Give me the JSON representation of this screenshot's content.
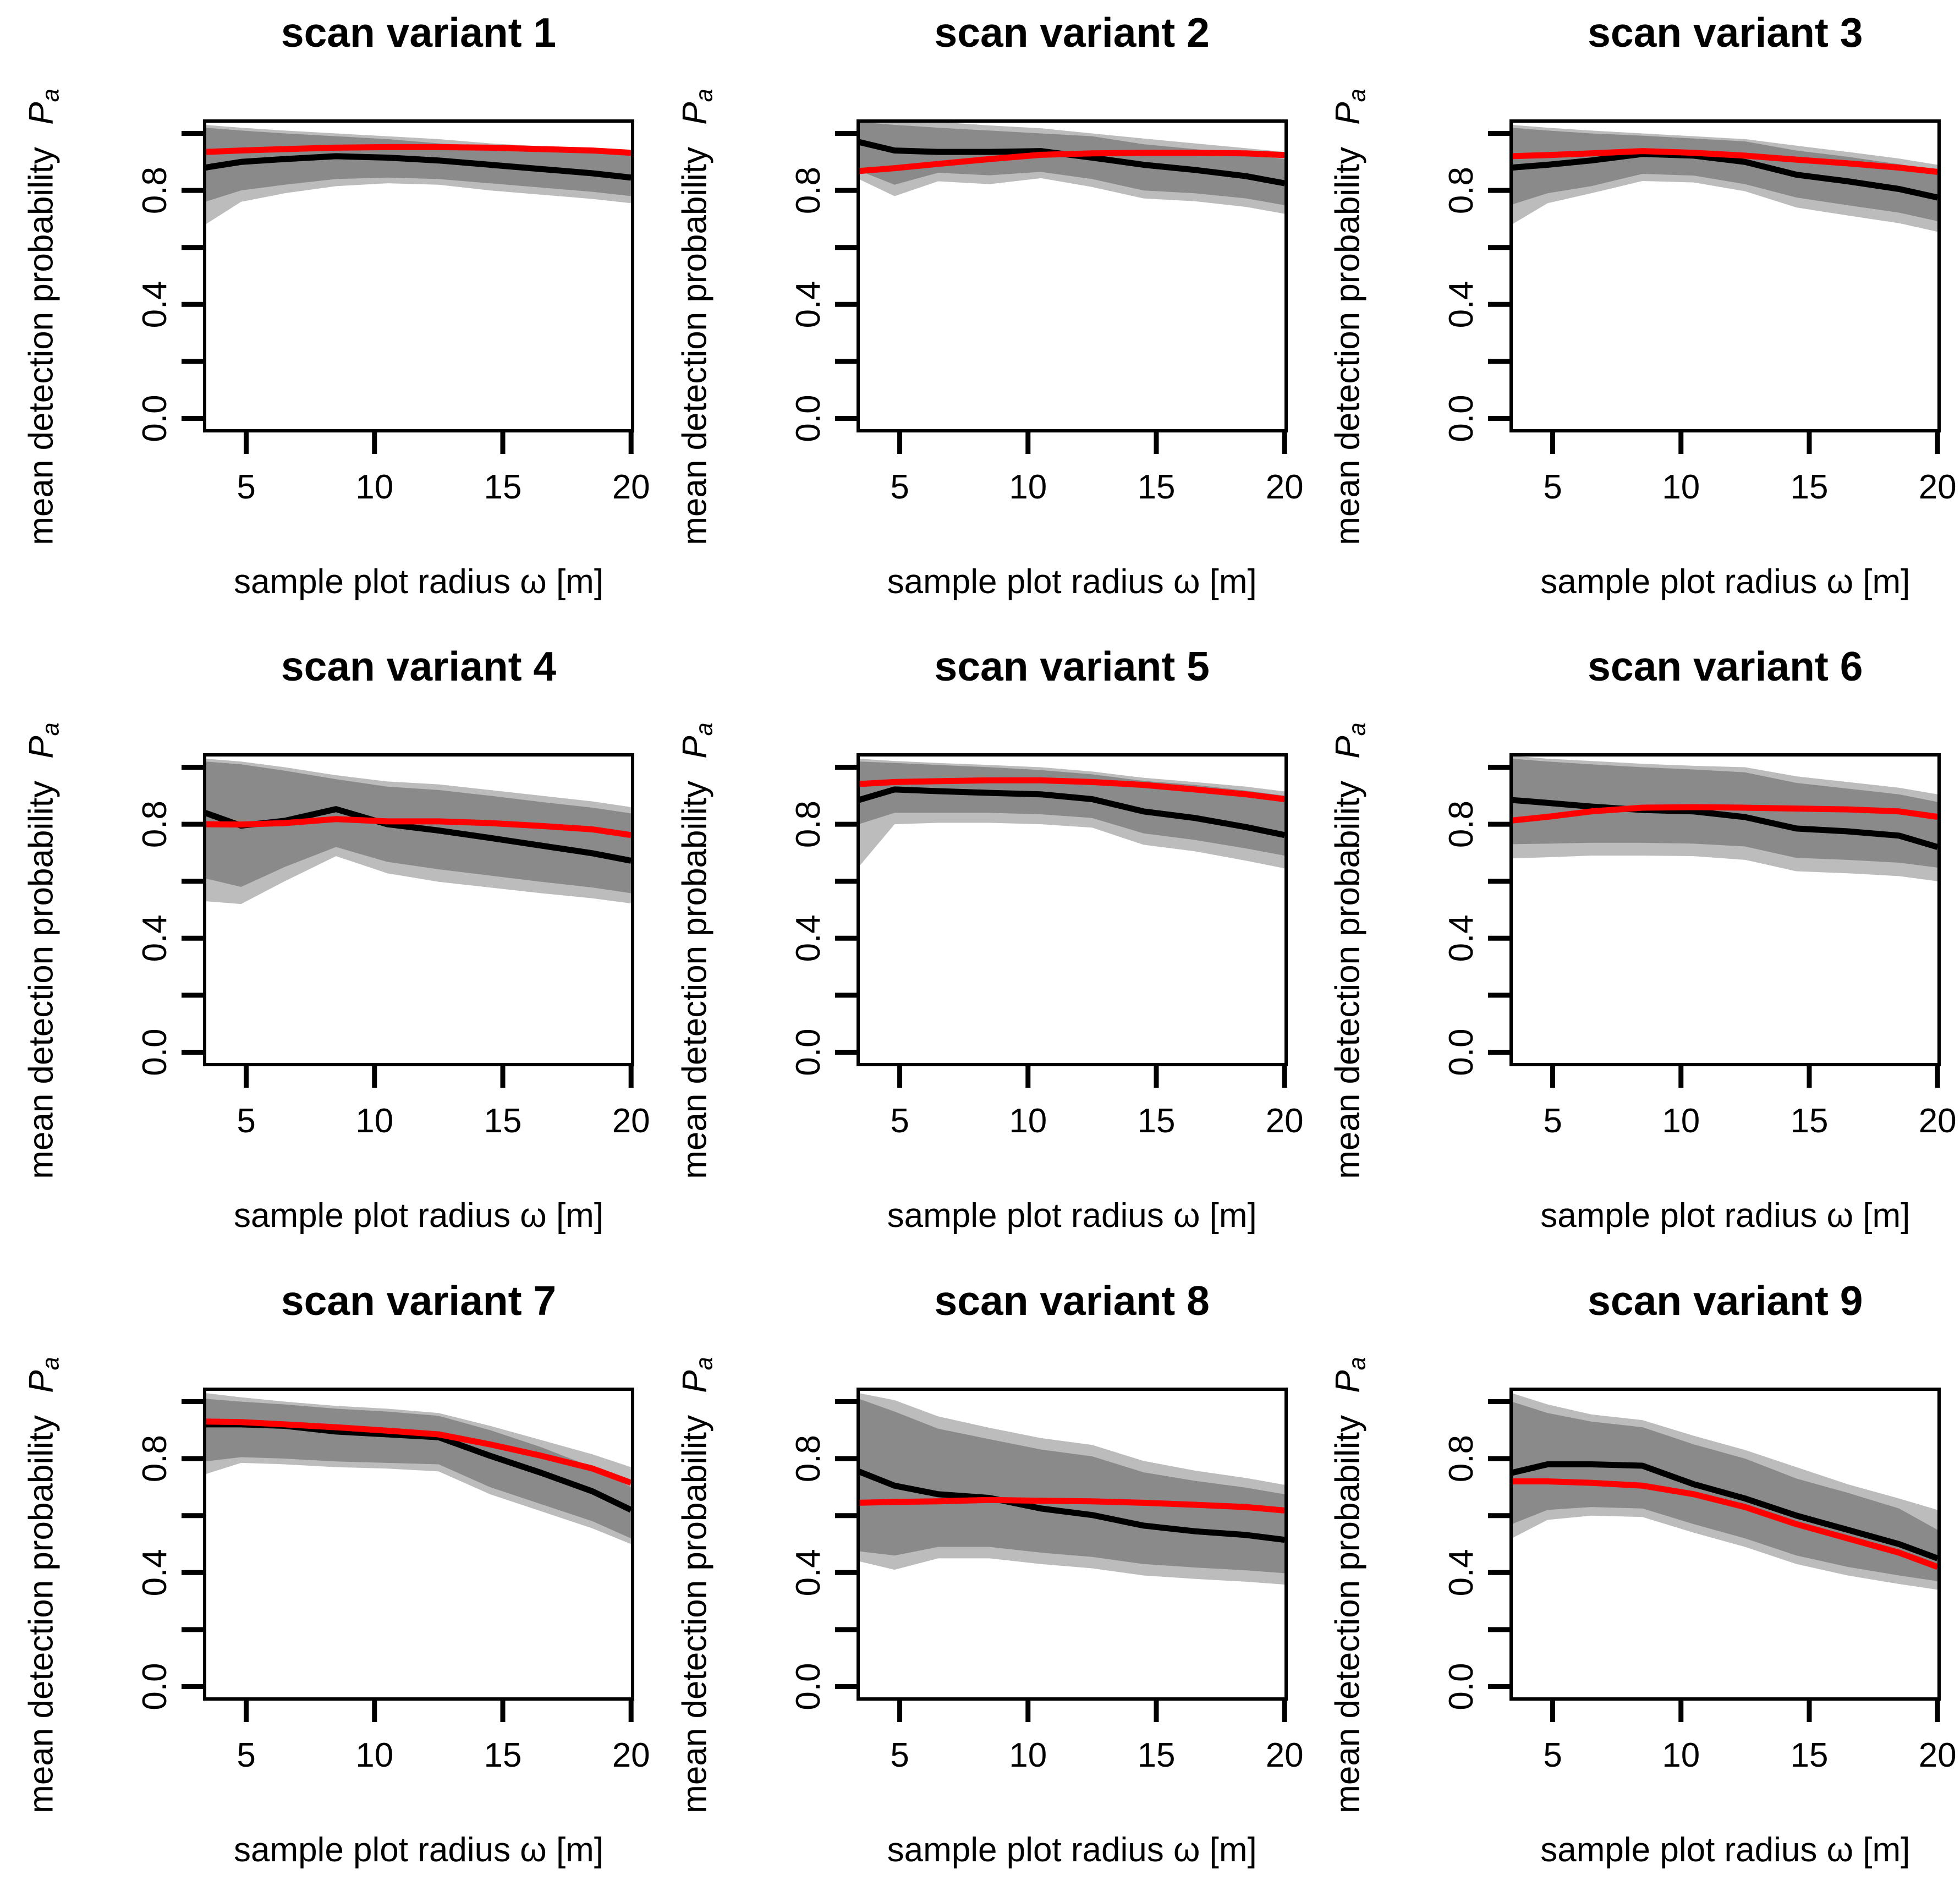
{
  "figure": {
    "layout": "3x3 grid of line charts"
  },
  "axes": {
    "xlabel": "sample plot radius ω [m]",
    "ylabel": "mean detection probability",
    "y_symbol": "P",
    "y_symbol_sub": "a",
    "xticks": [
      5,
      10,
      15,
      20
    ],
    "ytick_values": [
      0,
      0.2,
      0.4,
      0.6,
      0.8,
      1.0
    ],
    "yticks_labeled": [
      {
        "v": 0.0,
        "label": "0.0"
      },
      {
        "v": 0.4,
        "label": "0.4"
      },
      {
        "v": 0.8,
        "label": "0.8"
      }
    ],
    "xlim": [
      3.4,
      20
    ],
    "ylim": [
      0,
      1
    ]
  },
  "colors": {
    "frame": "#000000",
    "line_black": "#000000",
    "line_red": "#ff0000",
    "band_inner": "#8a8a8a",
    "band_outer": "#bcbcbc",
    "background": "#ffffff"
  },
  "chart_data": [
    {
      "type": "line",
      "title": "scan variant 1",
      "x": [
        3.4,
        4.8,
        6.5,
        8.5,
        10.5,
        12.5,
        14.5,
        16.5,
        18.5,
        20
      ],
      "black_line": [
        0.88,
        0.9,
        0.91,
        0.92,
        0.915,
        0.905,
        0.89,
        0.875,
        0.86,
        0.845
      ],
      "red_line": [
        0.935,
        0.94,
        0.945,
        0.95,
        0.952,
        0.952,
        0.95,
        0.945,
        0.94,
        0.932
      ],
      "band_inner_lo": [
        0.76,
        0.8,
        0.82,
        0.84,
        0.845,
        0.84,
        0.825,
        0.81,
        0.795,
        0.78
      ],
      "band_inner_hi": [
        1.02,
        1.01,
        1.0,
        0.99,
        0.98,
        0.965,
        0.955,
        0.945,
        0.935,
        0.925
      ],
      "band_outer_lo": [
        0.68,
        0.76,
        0.79,
        0.815,
        0.825,
        0.82,
        0.8,
        0.785,
        0.77,
        0.755
      ],
      "band_outer_hi": [
        1.03,
        1.02,
        1.01,
        1.0,
        0.99,
        0.98,
        0.965,
        0.955,
        0.945,
        0.94
      ]
    },
    {
      "type": "line",
      "title": "scan variant 2",
      "x": [
        3.4,
        4.8,
        6.5,
        8.5,
        10.5,
        12.5,
        14.5,
        16.5,
        18.5,
        20
      ],
      "black_line": [
        0.97,
        0.94,
        0.935,
        0.935,
        0.938,
        0.915,
        0.89,
        0.872,
        0.85,
        0.825
      ],
      "red_line": [
        0.868,
        0.878,
        0.893,
        0.91,
        0.925,
        0.93,
        0.932,
        0.932,
        0.93,
        0.924
      ],
      "band_inner_lo": [
        0.87,
        0.82,
        0.862,
        0.853,
        0.865,
        0.84,
        0.8,
        0.79,
        0.772,
        0.748
      ],
      "band_inner_hi": [
        1.04,
        1.03,
        1.02,
        1.01,
        1.0,
        0.99,
        0.962,
        0.945,
        0.928,
        0.91
      ],
      "band_outer_lo": [
        0.84,
        0.78,
        0.832,
        0.822,
        0.843,
        0.812,
        0.772,
        0.762,
        0.742,
        0.718
      ],
      "band_outer_hi": [
        1.04,
        1.04,
        1.04,
        1.028,
        1.018,
        1.0,
        0.982,
        0.965,
        0.948,
        0.935
      ]
    },
    {
      "type": "line",
      "title": "scan variant 3",
      "x": [
        3.4,
        4.8,
        6.5,
        8.5,
        10.5,
        12.5,
        14.5,
        16.5,
        18.5,
        20
      ],
      "black_line": [
        0.88,
        0.89,
        0.905,
        0.928,
        0.922,
        0.9,
        0.855,
        0.832,
        0.805,
        0.775
      ],
      "red_line": [
        0.92,
        0.924,
        0.93,
        0.938,
        0.932,
        0.922,
        0.908,
        0.895,
        0.88,
        0.865
      ],
      "band_inner_lo": [
        0.75,
        0.79,
        0.815,
        0.858,
        0.852,
        0.822,
        0.775,
        0.748,
        0.722,
        0.692
      ],
      "band_inner_hi": [
        1.02,
        1.01,
        1.0,
        0.992,
        0.982,
        0.972,
        0.94,
        0.918,
        0.892,
        0.868
      ],
      "band_outer_lo": [
        0.68,
        0.755,
        0.79,
        0.833,
        0.828,
        0.797,
        0.74,
        0.712,
        0.685,
        0.655
      ],
      "band_outer_hi": [
        1.03,
        1.02,
        1.01,
        1.0,
        0.99,
        0.98,
        0.957,
        0.935,
        0.912,
        0.89
      ]
    },
    {
      "type": "line",
      "title": "scan variant 4",
      "x": [
        3.4,
        4.8,
        6.5,
        8.5,
        10.5,
        12.5,
        14.5,
        16.5,
        18.5,
        20
      ],
      "black_line": [
        0.84,
        0.795,
        0.812,
        0.853,
        0.8,
        0.778,
        0.752,
        0.725,
        0.698,
        0.672
      ],
      "red_line": [
        0.8,
        0.799,
        0.804,
        0.818,
        0.81,
        0.81,
        0.804,
        0.794,
        0.782,
        0.762
      ],
      "band_inner_lo": [
        0.61,
        0.58,
        0.65,
        0.72,
        0.668,
        0.642,
        0.62,
        0.598,
        0.578,
        0.558
      ],
      "band_inner_hi": [
        1.02,
        1.01,
        0.988,
        0.958,
        0.932,
        0.92,
        0.9,
        0.878,
        0.858,
        0.838
      ],
      "band_outer_lo": [
        0.53,
        0.52,
        0.6,
        0.688,
        0.628,
        0.598,
        0.578,
        0.558,
        0.54,
        0.522
      ],
      "band_outer_hi": [
        1.03,
        1.02,
        1.0,
        0.972,
        0.95,
        0.94,
        0.92,
        0.9,
        0.88,
        0.86
      ]
    },
    {
      "type": "line",
      "title": "scan variant 5",
      "x": [
        3.4,
        4.8,
        6.5,
        8.5,
        10.5,
        12.5,
        14.5,
        16.5,
        18.5,
        20
      ],
      "black_line": [
        0.885,
        0.922,
        0.916,
        0.91,
        0.905,
        0.888,
        0.845,
        0.822,
        0.79,
        0.762
      ],
      "red_line": [
        0.941,
        0.948,
        0.951,
        0.954,
        0.954,
        0.948,
        0.938,
        0.922,
        0.905,
        0.888
      ],
      "band_inner_lo": [
        0.8,
        0.84,
        0.84,
        0.84,
        0.835,
        0.822,
        0.768,
        0.745,
        0.715,
        0.69
      ],
      "band_inner_hi": [
        1.02,
        1.015,
        1.008,
        1.0,
        0.99,
        0.975,
        0.952,
        0.938,
        0.918,
        0.9
      ],
      "band_outer_lo": [
        0.65,
        0.8,
        0.805,
        0.805,
        0.8,
        0.788,
        0.728,
        0.705,
        0.672,
        0.645
      ],
      "band_outer_hi": [
        1.03,
        1.022,
        1.015,
        1.008,
        1.0,
        0.985,
        0.963,
        0.948,
        0.932,
        0.915
      ]
    },
    {
      "type": "line",
      "title": "scan variant 6",
      "x": [
        3.4,
        4.8,
        6.5,
        8.5,
        10.5,
        12.5,
        14.5,
        16.5,
        18.5,
        20
      ],
      "black_line": [
        0.885,
        0.875,
        0.862,
        0.85,
        0.845,
        0.825,
        0.785,
        0.775,
        0.76,
        0.72
      ],
      "red_line": [
        0.813,
        0.826,
        0.845,
        0.858,
        0.86,
        0.858,
        0.855,
        0.852,
        0.845,
        0.826
      ],
      "band_inner_lo": [
        0.73,
        0.732,
        0.735,
        0.735,
        0.732,
        0.722,
        0.682,
        0.675,
        0.665,
        0.648
      ],
      "band_inner_hi": [
        1.03,
        1.02,
        1.01,
        1.0,
        0.992,
        0.982,
        0.945,
        0.925,
        0.905,
        0.878
      ],
      "band_outer_lo": [
        0.68,
        0.684,
        0.69,
        0.69,
        0.688,
        0.675,
        0.635,
        0.628,
        0.618,
        0.6
      ],
      "band_outer_hi": [
        1.04,
        1.03,
        1.022,
        1.012,
        1.005,
        1.0,
        0.968,
        0.948,
        0.928,
        0.905
      ]
    },
    {
      "type": "line",
      "title": "scan variant 7",
      "x": [
        3.4,
        4.8,
        6.5,
        8.5,
        10.5,
        12.5,
        14.5,
        16.5,
        18.5,
        20
      ],
      "black_line": [
        0.92,
        0.92,
        0.915,
        0.895,
        0.885,
        0.875,
        0.81,
        0.75,
        0.685,
        0.62
      ],
      "red_line": [
        0.93,
        0.928,
        0.92,
        0.91,
        0.898,
        0.885,
        0.85,
        0.81,
        0.765,
        0.715
      ],
      "band_inner_lo": [
        0.79,
        0.805,
        0.8,
        0.79,
        0.785,
        0.78,
        0.7,
        0.64,
        0.58,
        0.52
      ],
      "band_inner_hi": [
        1.01,
        1.0,
        0.99,
        0.975,
        0.965,
        0.95,
        0.9,
        0.84,
        0.77,
        0.7
      ],
      "band_outer_lo": [
        0.745,
        0.785,
        0.78,
        0.77,
        0.765,
        0.755,
        0.675,
        0.615,
        0.555,
        0.5
      ],
      "band_outer_hi": [
        1.03,
        1.015,
        1.0,
        0.985,
        0.975,
        0.96,
        0.915,
        0.865,
        0.815,
        0.77
      ]
    },
    {
      "type": "line",
      "title": "scan variant 8",
      "x": [
        3.4,
        4.8,
        6.5,
        8.5,
        10.5,
        12.5,
        14.5,
        16.5,
        18.5,
        20
      ],
      "black_line": [
        0.755,
        0.705,
        0.675,
        0.662,
        0.625,
        0.602,
        0.565,
        0.545,
        0.532,
        0.515
      ],
      "red_line": [
        0.645,
        0.648,
        0.65,
        0.655,
        0.652,
        0.65,
        0.645,
        0.638,
        0.63,
        0.618
      ],
      "band_inner_lo": [
        0.475,
        0.46,
        0.49,
        0.49,
        0.47,
        0.455,
        0.43,
        0.418,
        0.408,
        0.398
      ],
      "band_inner_hi": [
        1.01,
        0.965,
        0.905,
        0.868,
        0.832,
        0.808,
        0.752,
        0.722,
        0.698,
        0.675
      ],
      "band_outer_lo": [
        0.44,
        0.41,
        0.45,
        0.45,
        0.43,
        0.415,
        0.39,
        0.378,
        0.368,
        0.358
      ],
      "band_outer_hi": [
        1.03,
        1.005,
        0.948,
        0.908,
        0.872,
        0.848,
        0.792,
        0.758,
        0.732,
        0.708
      ]
    },
    {
      "type": "line",
      "title": "scan variant 9",
      "x": [
        3.4,
        4.8,
        6.5,
        8.5,
        10.5,
        12.5,
        14.5,
        16.5,
        18.5,
        20
      ],
      "black_line": [
        0.75,
        0.78,
        0.78,
        0.775,
        0.71,
        0.66,
        0.6,
        0.55,
        0.5,
        0.45
      ],
      "red_line": [
        0.72,
        0.72,
        0.715,
        0.705,
        0.675,
        0.63,
        0.57,
        0.52,
        0.47,
        0.42
      ],
      "band_inner_lo": [
        0.57,
        0.62,
        0.63,
        0.625,
        0.57,
        0.52,
        0.46,
        0.42,
        0.39,
        0.37
      ],
      "band_inner_hi": [
        1.0,
        0.96,
        0.93,
        0.91,
        0.85,
        0.8,
        0.73,
        0.68,
        0.625,
        0.55
      ],
      "band_outer_lo": [
        0.52,
        0.585,
        0.6,
        0.595,
        0.54,
        0.49,
        0.43,
        0.39,
        0.36,
        0.34
      ],
      "band_outer_hi": [
        1.03,
        0.99,
        0.955,
        0.935,
        0.88,
        0.83,
        0.77,
        0.71,
        0.66,
        0.62
      ]
    }
  ]
}
